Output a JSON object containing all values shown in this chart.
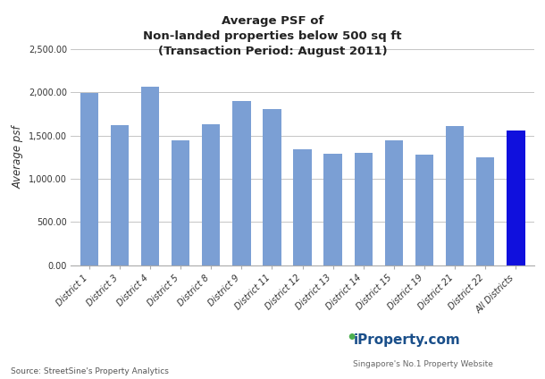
{
  "title": "Average PSF of\nNon-landed properties below 500 sq ft\n(Transaction Period: August 2011)",
  "ylabel": "Average psf",
  "xlabel": "",
  "categories": [
    "District 1",
    "District 3",
    "District 4",
    "District 5",
    "District 8",
    "District 9",
    "District 11",
    "District 12",
    "District 13",
    "District 14",
    "District 15",
    "District 19",
    "District 21",
    "District 22",
    "All Districts"
  ],
  "values": [
    1990,
    1620,
    2070,
    1450,
    1635,
    1900,
    1810,
    1340,
    1290,
    1300,
    1450,
    1280,
    1610,
    1250,
    1555
  ],
  "bar_colors": [
    "#7b9fd4",
    "#7b9fd4",
    "#7b9fd4",
    "#7b9fd4",
    "#7b9fd4",
    "#7b9fd4",
    "#7b9fd4",
    "#7b9fd4",
    "#7b9fd4",
    "#7b9fd4",
    "#7b9fd4",
    "#7b9fd4",
    "#7b9fd4",
    "#7b9fd4",
    "#1010dd"
  ],
  "ylim": [
    0,
    2500
  ],
  "yticks": [
    0,
    500,
    1000,
    1500,
    2000,
    2500
  ],
  "ytick_labels": [
    "0.00",
    "500.00",
    "1,000.00",
    "1,500.00",
    "2,000.00",
    "2,500.00"
  ],
  "source_text": "Source: StreetSine's Property Analytics",
  "background_color": "#ffffff",
  "grid_color": "#bbbbbb",
  "title_fontsize": 9.5,
  "ylabel_fontsize": 8.5,
  "tick_fontsize": 7,
  "bar_width": 0.6,
  "logo_text1": "iProperty.com",
  "logo_text2": "Singapore's No.1 Property Website"
}
